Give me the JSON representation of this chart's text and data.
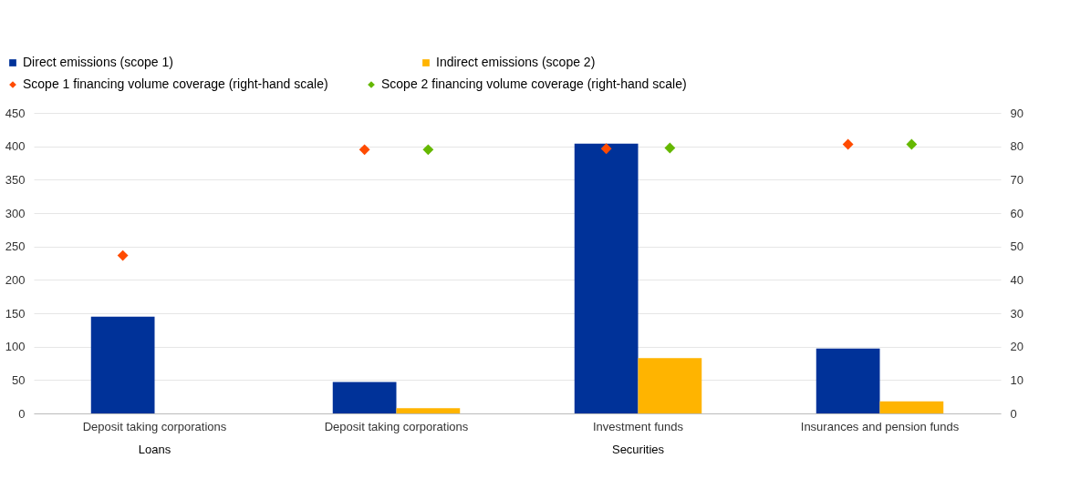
{
  "chart_data": {
    "type": "bar",
    "categories": [
      "Deposit taking corporations",
      "Deposit taking corporations",
      "Investment funds",
      "Insurances and pension funds"
    ],
    "series": [
      {
        "name": "Direct emissions (scope 1)",
        "color": "#003299",
        "values": [
          145,
          47,
          404,
          97
        ]
      },
      {
        "name": "Indirect emissions (scope 2)",
        "color": "#ffb400",
        "values": [
          null,
          8,
          83,
          18
        ]
      },
      {
        "name": "Scope 1 financing volume coverage (right-hand scale)",
        "type": "scatter",
        "axis": "y2",
        "color": "#ff4b00",
        "values": [
          47.3,
          79,
          79.3,
          80.6
        ]
      },
      {
        "name": "Scope 2 financing volume coverage (right-hand scale)",
        "type": "scatter",
        "axis": "y2",
        "color": "#65b800",
        "values": [
          null,
          79,
          79.5,
          80.6
        ]
      }
    ],
    "annotations": [
      "Loans",
      "Securities"
    ],
    "ylim": [
      0,
      450
    ],
    "yticks": [
      0,
      50,
      100,
      150,
      200,
      250,
      300,
      350,
      400,
      450
    ],
    "y2lim": [
      0,
      90
    ],
    "y2ticks": [
      0,
      10,
      20,
      30,
      40,
      50,
      60,
      70,
      80,
      90
    ],
    "grid": "y",
    "marker": "diamond",
    "legend": "top"
  }
}
